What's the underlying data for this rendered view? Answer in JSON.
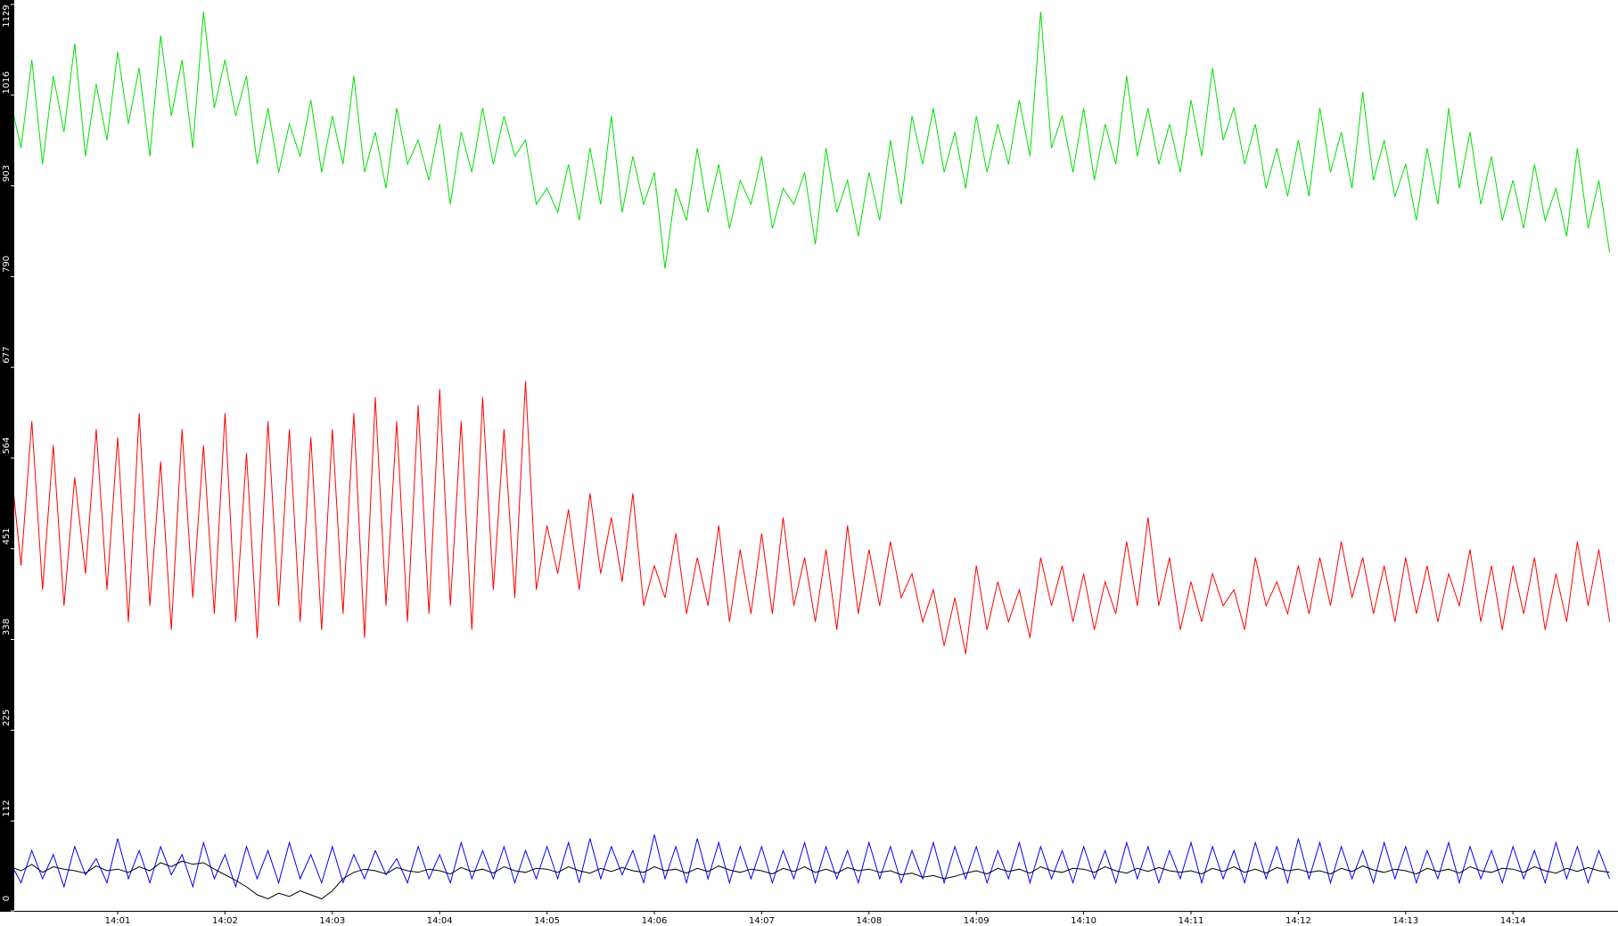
{
  "chart_data": {
    "type": "line",
    "categories": [
      null,
      null,
      null,
      null,
      null,
      null,
      null,
      null,
      null,
      null,
      "14:01",
      null,
      null,
      null,
      null,
      null,
      null,
      null,
      null,
      null,
      "14:02",
      null,
      null,
      null,
      null,
      null,
      null,
      null,
      null,
      null,
      "14:03",
      null,
      null,
      null,
      null,
      null,
      null,
      null,
      null,
      null,
      "14:04",
      null,
      null,
      null,
      null,
      null,
      null,
      null,
      null,
      null,
      "14:05",
      null,
      null,
      null,
      null,
      null,
      null,
      null,
      null,
      null,
      "14:06",
      null,
      null,
      null,
      null,
      null,
      null,
      null,
      null,
      null,
      "14:07",
      null,
      null,
      null,
      null,
      null,
      null,
      null,
      null,
      null,
      "14:08",
      null,
      null,
      null,
      null,
      null,
      null,
      null,
      null,
      null,
      "14:09",
      null,
      null,
      null,
      null,
      null,
      null,
      null,
      null,
      null,
      "14:10",
      null,
      null,
      null,
      null,
      null,
      null,
      null,
      null,
      null,
      "14:11",
      null,
      null,
      null,
      null,
      null,
      null,
      null,
      null,
      null,
      "14:12",
      null,
      null,
      null,
      null,
      null,
      null,
      null,
      null,
      null,
      "14:13",
      null,
      null,
      null,
      null,
      null,
      null,
      null,
      null,
      null,
      "14:14",
      null,
      null,
      null,
      null,
      null,
      null,
      null,
      null,
      null
    ],
    "series": [
      {
        "color": "#00e000",
        "values": [
          1010,
          950,
          1060,
          930,
          1040,
          970,
          1080,
          940,
          1030,
          960,
          1070,
          980,
          1050,
          940,
          1090,
          990,
          1060,
          950,
          1120,
          1000,
          1060,
          990,
          1040,
          930,
          1000,
          920,
          980,
          940,
          1010,
          920,
          990,
          930,
          1040,
          920,
          970,
          900,
          1000,
          930,
          960,
          910,
          980,
          880,
          970,
          920,
          1000,
          930,
          990,
          940,
          960,
          880,
          900,
          870,
          930,
          860,
          950,
          880,
          990,
          870,
          940,
          880,
          920,
          800,
          900,
          860,
          950,
          870,
          930,
          850,
          910,
          880,
          940,
          850,
          900,
          880,
          920,
          830,
          950,
          870,
          910,
          840,
          920,
          860,
          960,
          880,
          990,
          930,
          1000,
          920,
          970,
          900,
          990,
          920,
          980,
          930,
          1010,
          940,
          1120,
          950,
          990,
          920,
          1000,
          910,
          980,
          930,
          1040,
          940,
          1000,
          930,
          980,
          920,
          1010,
          940,
          1050,
          960,
          1000,
          930,
          980,
          900,
          950,
          890,
          960,
          890,
          1000,
          920,
          970,
          900,
          1020,
          910,
          960,
          890,
          930,
          860,
          950,
          880,
          1000,
          900,
          970,
          880,
          940,
          860,
          910,
          850,
          930,
          860,
          900,
          840,
          950,
          850,
          910,
          820
        ]
      },
      {
        "color": "#ff0000",
        "values": [
          560,
          430,
          610,
          400,
          580,
          380,
          540,
          420,
          600,
          400,
          590,
          360,
          620,
          380,
          560,
          350,
          600,
          390,
          580,
          370,
          620,
          360,
          570,
          340,
          610,
          380,
          600,
          360,
          590,
          350,
          600,
          370,
          620,
          340,
          640,
          380,
          610,
          360,
          630,
          370,
          650,
          380,
          610,
          350,
          640,
          400,
          600,
          390,
          660,
          400,
          480,
          420,
          500,
          400,
          520,
          420,
          490,
          410,
          520,
          380,
          430,
          390,
          470,
          370,
          440,
          380,
          480,
          360,
          450,
          370,
          470,
          370,
          490,
          380,
          440,
          360,
          450,
          350,
          480,
          370,
          450,
          380,
          460,
          390,
          420,
          360,
          400,
          330,
          390,
          320,
          430,
          350,
          410,
          360,
          400,
          340,
          440,
          380,
          430,
          360,
          420,
          350,
          410,
          370,
          460,
          380,
          490,
          380,
          440,
          350,
          410,
          360,
          420,
          380,
          400,
          350,
          440,
          380,
          410,
          370,
          430,
          370,
          440,
          380,
          460,
          390,
          440,
          370,
          430,
          360,
          440,
          370,
          430,
          360,
          420,
          380,
          450,
          360,
          430,
          350,
          430,
          370,
          440,
          350,
          420,
          360,
          460,
          380,
          450,
          360
        ]
      },
      {
        "color": "#0000ff",
        "values": [
          60,
          35,
          75,
          40,
          70,
          30,
          80,
          45,
          65,
          35,
          90,
          40,
          75,
          35,
          80,
          45,
          70,
          30,
          85,
          40,
          70,
          30,
          80,
          40,
          75,
          35,
          85,
          40,
          70,
          35,
          80,
          35,
          70,
          40,
          75,
          45,
          65,
          35,
          80,
          40,
          70,
          35,
          85,
          40,
          75,
          40,
          80,
          35,
          75,
          40,
          80,
          40,
          85,
          35,
          90,
          40,
          80,
          45,
          75,
          35,
          95,
          40,
          80,
          35,
          90,
          40,
          85,
          35,
          80,
          40,
          80,
          35,
          75,
          40,
          85,
          35,
          80,
          40,
          75,
          35,
          85,
          40,
          80,
          35,
          75,
          40,
          85,
          35,
          80,
          40,
          80,
          35,
          75,
          40,
          85,
          35,
          80,
          40,
          75,
          35,
          80,
          40,
          75,
          35,
          85,
          40,
          80,
          35,
          75,
          40,
          85,
          35,
          80,
          40,
          75,
          35,
          85,
          40,
          80,
          35,
          90,
          40,
          85,
          35,
          80,
          40,
          75,
          35,
          85,
          40,
          80,
          35,
          75,
          40,
          85,
          35,
          80,
          40,
          75,
          35,
          80,
          40,
          75,
          35,
          85,
          40,
          80,
          35,
          75,
          40
        ]
      },
      {
        "color": "#000000",
        "values": [
          55,
          50,
          58,
          48,
          55,
          52,
          50,
          47,
          56,
          50,
          52,
          48,
          55,
          50,
          60,
          55,
          62,
          58,
          60,
          52,
          45,
          38,
          30,
          20,
          15,
          22,
          18,
          25,
          20,
          15,
          25,
          40,
          48,
          52,
          50,
          46,
          54,
          50,
          48,
          52,
          50,
          46,
          54,
          49,
          52,
          47,
          55,
          50,
          48,
          53,
          52,
          48,
          55,
          50,
          47,
          53,
          49,
          54,
          50,
          48,
          55,
          50,
          52,
          47,
          53,
          49,
          56,
          51,
          48,
          52,
          50,
          46,
          53,
          49,
          55,
          48,
          52,
          47,
          54,
          50,
          52,
          48,
          50,
          45,
          47,
          42,
          44,
          40,
          43,
          47,
          50,
          46,
          53,
          49,
          52,
          47,
          55,
          50,
          48,
          53,
          52,
          48,
          55,
          50,
          47,
          53,
          49,
          54,
          50,
          48,
          50,
          46,
          53,
          49,
          55,
          48,
          52,
          47,
          54,
          50,
          52,
          48,
          50,
          46,
          53,
          49,
          56,
          51,
          48,
          52,
          50,
          46,
          53,
          49,
          52,
          47,
          55,
          50,
          48,
          53,
          52,
          48,
          55,
          50,
          47,
          53,
          49,
          54,
          50,
          48
        ]
      }
    ],
    "ylim": [
      0,
      1129
    ],
    "yticks": [
      0,
      112,
      225,
      338,
      451,
      564,
      677,
      790,
      903,
      1016,
      1129
    ]
  }
}
